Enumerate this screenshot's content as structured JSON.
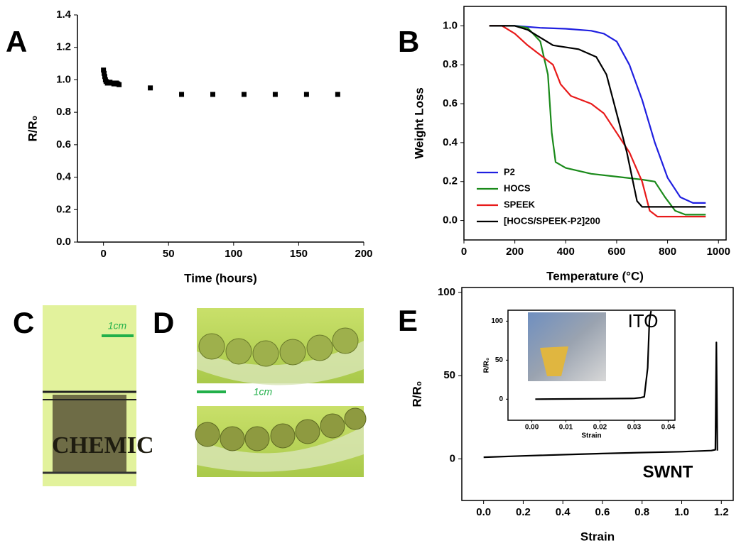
{
  "chart_data": [
    {
      "type": "scatter",
      "panel": "A",
      "xlabel": "Time (hours)",
      "ylabel": "R/R₀",
      "color": "#000000",
      "x": [
        0,
        0.5,
        1,
        1.5,
        2,
        3,
        4,
        5,
        6,
        7,
        8,
        9,
        10,
        11,
        12,
        36,
        60,
        84,
        108,
        132,
        156,
        180
      ],
      "values": [
        1.06,
        1.04,
        1.02,
        1.0,
        0.99,
        0.98,
        0.98,
        0.985,
        0.98,
        0.98,
        0.975,
        0.98,
        0.98,
        0.975,
        0.97,
        0.95,
        0.91,
        0.91,
        0.91,
        0.91,
        0.91,
        0.91
      ],
      "xlim": [
        -20,
        200
      ],
      "xticks": [
        0,
        50,
        100,
        150,
        200
      ],
      "ylim": [
        0,
        1.4
      ],
      "yticks": [
        {
          "value": 0,
          "label": "0.0"
        },
        0.2,
        0.4,
        0.6,
        0.8,
        {
          "value": 1,
          "label": "1.0"
        },
        1.2,
        1.4
      ]
    },
    {
      "type": "line",
      "panel": "B",
      "xlabel": "Temperature (°C)",
      "ylabel": "Weight Loss",
      "legend": "lower left",
      "series": [
        {
          "name": "P2",
          "color": "#1f1fe0",
          "x": [
            100,
            200,
            300,
            400,
            500,
            550,
            600,
            650,
            700,
            750,
            800,
            850,
            900,
            950
          ],
          "values": [
            1.0,
            1.0,
            0.99,
            0.985,
            0.975,
            0.96,
            0.92,
            0.8,
            0.62,
            0.4,
            0.22,
            0.12,
            0.09,
            0.09
          ]
        },
        {
          "name": "HOCS",
          "color": "#1a8a1a",
          "x": [
            100,
            200,
            250,
            300,
            330,
            345,
            360,
            400,
            500,
            600,
            700,
            750,
            790,
            830,
            870,
            950
          ],
          "values": [
            1.0,
            1.0,
            0.99,
            0.92,
            0.75,
            0.45,
            0.3,
            0.27,
            0.24,
            0.225,
            0.21,
            0.2,
            0.12,
            0.05,
            0.03,
            0.03
          ]
        },
        {
          "name": "SPEEK",
          "color": "#e81a1a",
          "x": [
            100,
            150,
            200,
            250,
            300,
            350,
            380,
            420,
            500,
            550,
            600,
            650,
            700,
            730,
            760,
            950
          ],
          "values": [
            1.0,
            1.0,
            0.96,
            0.9,
            0.85,
            0.8,
            0.7,
            0.64,
            0.6,
            0.55,
            0.45,
            0.35,
            0.2,
            0.05,
            0.02,
            0.02
          ]
        },
        {
          "name": "[HOCS/SPEEK-P2]200",
          "color": "#000000",
          "x": [
            100,
            200,
            250,
            300,
            350,
            450,
            520,
            560,
            600,
            640,
            680,
            700,
            750,
            950
          ],
          "values": [
            1.0,
            1.0,
            0.98,
            0.94,
            0.9,
            0.88,
            0.84,
            0.75,
            0.55,
            0.35,
            0.1,
            0.07,
            0.07,
            0.07
          ]
        }
      ],
      "xlim": [
        0,
        1030
      ],
      "xticks": [
        0,
        200,
        400,
        600,
        800,
        1000
      ],
      "ylim": [
        -0.1,
        1.1
      ],
      "yticks": [
        {
          "value": 0,
          "label": "0.0"
        },
        0.2,
        0.4,
        0.6,
        0.8,
        {
          "value": 1,
          "label": "1.0"
        }
      ]
    },
    {
      "type": "line",
      "panel": "E",
      "xlabel": "Strain",
      "ylabel": "R/R₀",
      "annotation": "SWNT",
      "series": [
        {
          "name": "SWNT",
          "color": "#000000",
          "x": [
            0,
            0.2,
            0.4,
            0.6,
            0.8,
            1.0,
            1.15,
            1.17,
            1.175,
            1.18
          ],
          "values": [
            1,
            1.8,
            2.5,
            3.2,
            3.8,
            4.3,
            5,
            5.5,
            70,
            5
          ]
        }
      ],
      "xlim": [
        -0.11,
        1.26
      ],
      "xticks": [
        {
          "value": 0,
          "label": "0.0"
        },
        0.2,
        0.4,
        0.6,
        0.8,
        {
          "value": 1,
          "label": "1.0"
        },
        1.2
      ],
      "ylim": [
        -25,
        103
      ],
      "yticks": [
        0,
        50,
        100
      ]
    },
    {
      "type": "line",
      "xlabel": "Strain",
      "ylabel": "R/R₀",
      "annotation": "ITO",
      "series": [
        {
          "name": "ITO",
          "color": "#000000",
          "x": [
            0.001,
            0.01,
            0.02,
            0.03,
            0.032,
            0.033,
            0.034,
            0.0345,
            0.035
          ],
          "values": [
            0,
            0.3,
            0.6,
            1,
            2,
            3,
            40,
            100,
            113
          ]
        }
      ],
      "xlim": [
        -0.007,
        0.042
      ],
      "xticks": [
        {
          "value": 0,
          "label": "0.00"
        },
        0.01,
        0.02,
        0.03,
        0.04
      ],
      "ylim": [
        -27,
        114
      ],
      "yticks": [
        0,
        50,
        100
      ]
    }
  ],
  "photos": [
    {
      "panel": "C",
      "scale": "1cm",
      "text": "CHEMIC"
    },
    {
      "panel": "D",
      "scale": "1cm"
    }
  ]
}
